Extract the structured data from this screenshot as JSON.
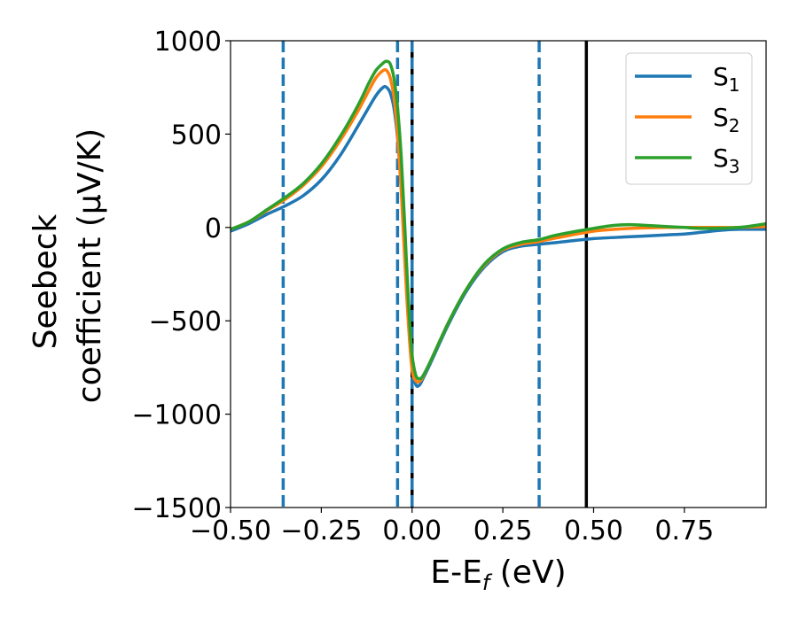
{
  "chart_data": {
    "type": "line",
    "xlabel": "E-E",
    "xlabel_sub": "f",
    "xlabel_unit": " (eV)",
    "ylabel_line1": "Seebeck",
    "ylabel_line2": "coefficient  (μV/K)",
    "xlim": [
      -0.5,
      0.975
    ],
    "ylim": [
      -1500,
      1000
    ],
    "xticks": [
      -0.5,
      -0.25,
      0.0,
      0.25,
      0.5,
      0.75
    ],
    "xtick_labels": [
      "−0.50",
      "−0.25",
      "0.00",
      "0.25",
      "0.50",
      "0.75"
    ],
    "yticks": [
      1000,
      500,
      0,
      -500,
      -1000,
      -1500
    ],
    "ytick_labels": [
      "1000",
      "500",
      "0",
      "−500",
      "−1000",
      "−1500"
    ],
    "grid": false,
    "legend_position": "top-right",
    "series": [
      {
        "name": "S",
        "sub": "1",
        "color": "#1f77b4",
        "x": [
          -0.5,
          -0.45,
          -0.4,
          -0.35,
          -0.3,
          -0.25,
          -0.2,
          -0.15,
          -0.12,
          -0.1,
          -0.08,
          -0.07,
          -0.06,
          -0.05,
          -0.04,
          -0.03,
          -0.02,
          -0.01,
          0.0,
          0.01,
          0.02,
          0.03,
          0.05,
          0.1,
          0.15,
          0.2,
          0.25,
          0.3,
          0.35,
          0.4,
          0.5,
          0.6,
          0.7,
          0.75,
          0.8,
          0.85,
          0.9,
          0.975
        ],
        "y": [
          -20,
          20,
          70,
          115,
          170,
          255,
          380,
          540,
          640,
          705,
          750,
          750,
          720,
          640,
          480,
          220,
          -120,
          -480,
          -740,
          -840,
          -845,
          -810,
          -730,
          -520,
          -340,
          -210,
          -130,
          -100,
          -90,
          -80,
          -60,
          -50,
          -40,
          -35,
          -25,
          -15,
          -10,
          -10
        ]
      },
      {
        "name": "S",
        "sub": "2",
        "color": "#ff7f0e",
        "x": [
          -0.5,
          -0.45,
          -0.4,
          -0.35,
          -0.3,
          -0.25,
          -0.2,
          -0.15,
          -0.12,
          -0.1,
          -0.08,
          -0.07,
          -0.06,
          -0.05,
          -0.04,
          -0.03,
          -0.02,
          -0.01,
          0.0,
          0.01,
          0.02,
          0.03,
          0.05,
          0.1,
          0.15,
          0.2,
          0.25,
          0.3,
          0.35,
          0.4,
          0.5,
          0.6,
          0.7,
          0.75,
          0.8,
          0.85,
          0.9,
          0.975
        ],
        "y": [
          -10,
          30,
          90,
          150,
          225,
          325,
          460,
          620,
          730,
          800,
          840,
          840,
          800,
          700,
          500,
          200,
          -180,
          -520,
          -760,
          -820,
          -825,
          -800,
          -720,
          -510,
          -330,
          -200,
          -120,
          -90,
          -75,
          -55,
          -20,
          -5,
          0,
          0,
          0,
          0,
          0,
          5
        ]
      },
      {
        "name": "S",
        "sub": "3",
        "color": "#2ca02c",
        "x": [
          -0.5,
          -0.45,
          -0.4,
          -0.35,
          -0.3,
          -0.25,
          -0.2,
          -0.15,
          -0.12,
          -0.1,
          -0.08,
          -0.07,
          -0.06,
          -0.05,
          -0.04,
          -0.03,
          -0.02,
          -0.01,
          0.0,
          0.01,
          0.02,
          0.03,
          0.05,
          0.1,
          0.15,
          0.2,
          0.25,
          0.3,
          0.35,
          0.4,
          0.5,
          0.55,
          0.6,
          0.7,
          0.75,
          0.8,
          0.9,
          0.975
        ],
        "y": [
          -10,
          30,
          95,
          160,
          235,
          340,
          480,
          650,
          770,
          840,
          880,
          890,
          875,
          800,
          640,
          380,
          0,
          -400,
          -680,
          -790,
          -810,
          -795,
          -720,
          -510,
          -330,
          -195,
          -115,
          -80,
          -65,
          -40,
          -5,
          10,
          15,
          5,
          0,
          -5,
          0,
          20
        ]
      }
    ],
    "vlines": [
      {
        "x": -0.355,
        "color": "#1f77b4",
        "style": "dashed"
      },
      {
        "x": -0.04,
        "color": "#1f77b4",
        "style": "dashed"
      },
      {
        "x": 0.0,
        "color": "#000000",
        "style": "solid"
      },
      {
        "x": 0.0,
        "color": "#1f77b4",
        "style": "dashed"
      },
      {
        "x": 0.35,
        "color": "#1f77b4",
        "style": "dashed"
      },
      {
        "x": 0.48,
        "color": "#000000",
        "style": "solid"
      }
    ]
  }
}
